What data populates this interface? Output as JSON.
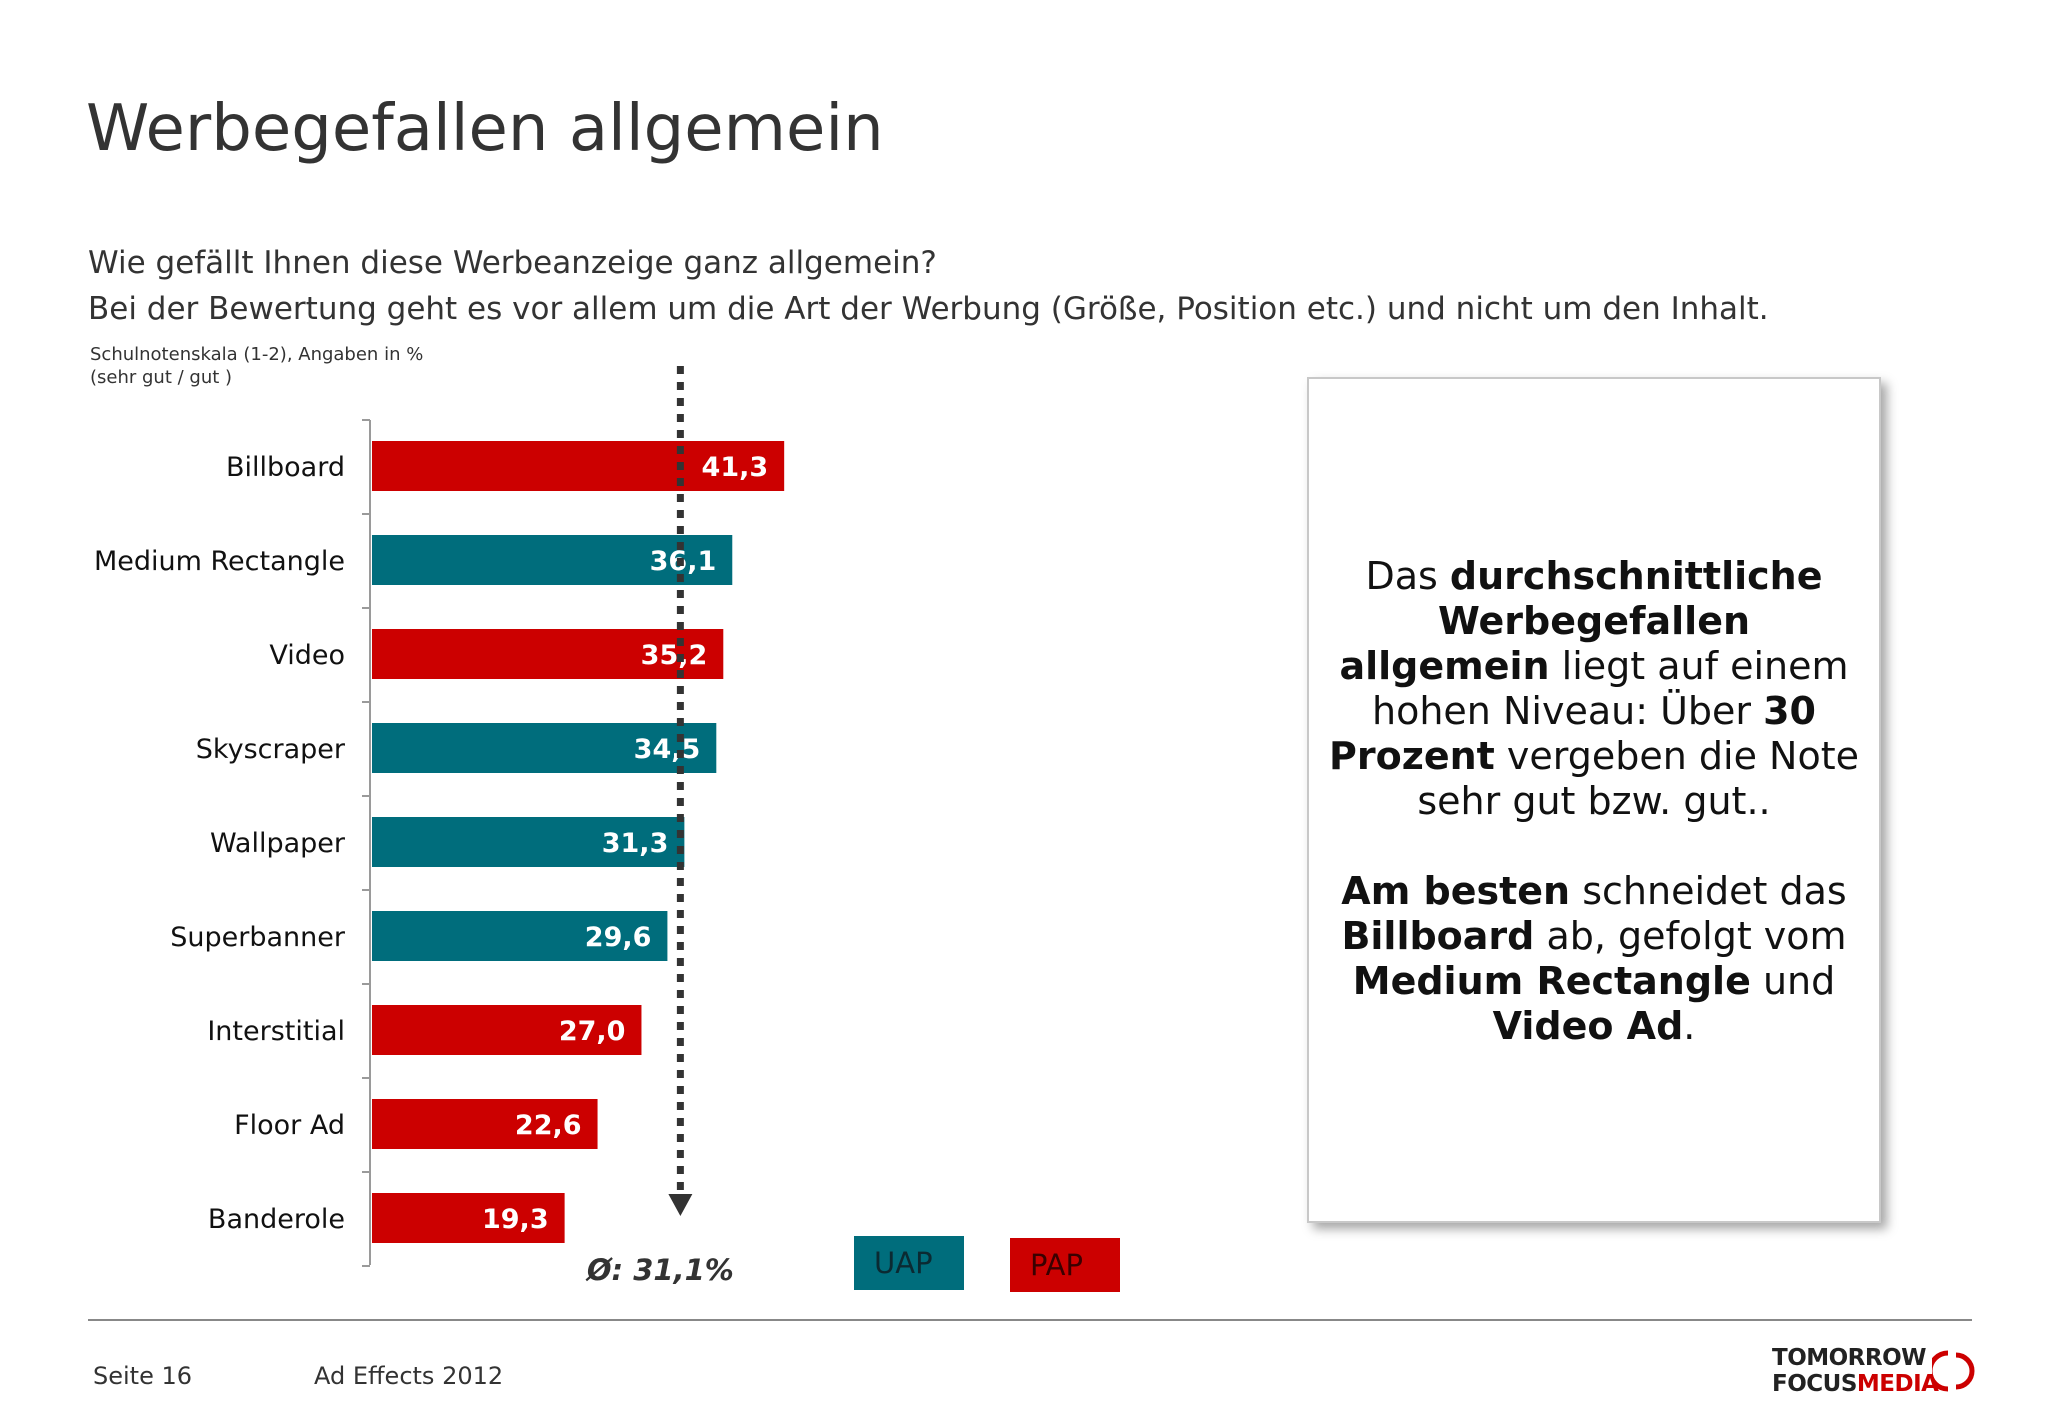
{
  "title": "Werbegefallen allgemein",
  "subtitle_line1": "Wie gefällt Ihnen diese Werbeanzeige ganz allgemein?",
  "subtitle_line2": "Bei der Bewertung geht es vor allem um die Art der Werbung (Größe, Position etc.) und nicht um den Inhalt.",
  "scale_note_line1": "Schulnotenskala (1-2), Angaben in %",
  "scale_note_line2": "(sehr gut / gut )",
  "colors": {
    "UAP": "#006d7c",
    "PAP": "#cc0000"
  },
  "chart_data": {
    "type": "bar",
    "orientation": "horizontal",
    "categories": [
      "Billboard",
      "Medium Rectangle",
      "Video",
      "Skyscraper",
      "Wallpaper",
      "Superbanner",
      "Interstitial",
      "Floor Ad",
      "Banderole"
    ],
    "values": [
      41.3,
      36.1,
      35.2,
      34.5,
      31.3,
      29.6,
      27.0,
      22.6,
      19.3
    ],
    "value_labels": [
      "41,3",
      "36,1",
      "35,2",
      "34,5",
      "31,3",
      "29,6",
      "27,0",
      "22,6",
      "19,3"
    ],
    "groups": [
      "PAP",
      "UAP",
      "PAP",
      "UAP",
      "UAP",
      "UAP",
      "PAP",
      "PAP",
      "PAP"
    ],
    "legend": [
      "UAP",
      "PAP"
    ],
    "legend_placement": "bottom",
    "average": 31.1,
    "average_label": "Ø: 31,1%",
    "xlim": [
      0,
      100
    ],
    "grid": false
  },
  "callout": {
    "p1_a": "Das ",
    "p1_b": "durchschnittliche Werbegefallen allgemein",
    "p1_c": " liegt auf einem hohen Niveau: Über ",
    "p1_d": "30 Prozent",
    "p1_e": " vergeben die Note sehr gut bzw. gut..",
    "p2_a": "Am besten",
    "p2_b": " schneidet das ",
    "p2_c": "Billboard",
    "p2_d": " ab, gefolgt vom ",
    "p2_e": "Medium Rectangle",
    "p2_f": " und ",
    "p2_g": "Video Ad",
    "p2_h": "."
  },
  "footer": {
    "page": "Seite 16",
    "study": "Ad Effects 2012",
    "logo_line1": "TOMORROW",
    "logo_focus": "FOCUS",
    "logo_media": "MEDIA"
  }
}
